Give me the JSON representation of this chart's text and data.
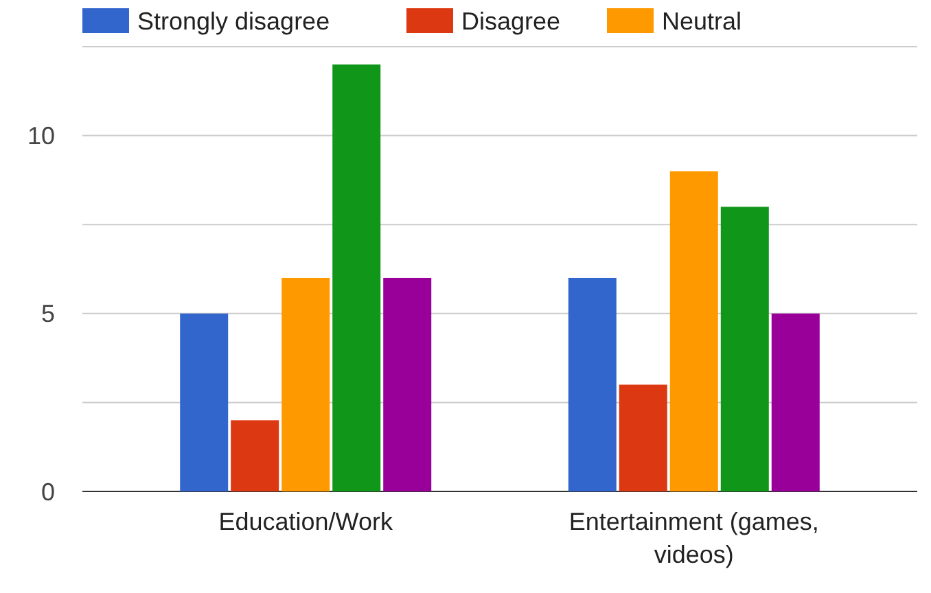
{
  "chart_data": {
    "type": "bar",
    "categories": [
      "Education/Work",
      "Entertainment (games, videos)"
    ],
    "series": [
      {
        "name": "Strongly disagree",
        "color": "#3366cc",
        "values": [
          5,
          6
        ]
      },
      {
        "name": "Disagree",
        "color": "#dc3912",
        "values": [
          2,
          3
        ]
      },
      {
        "name": "Neutral",
        "color": "#ff9900",
        "values": [
          6,
          9
        ]
      },
      {
        "color": "#109618",
        "values": [
          12,
          8
        ]
      },
      {
        "color": "#990099",
        "values": [
          6,
          5
        ]
      }
    ],
    "ylim": [
      0,
      12.5
    ],
    "yticks": [
      0,
      {
        "value": 2.5,
        "label": null
      },
      5,
      {
        "value": 7.5,
        "label": null
      },
      10,
      {
        "value": 12.5,
        "label": null
      }
    ],
    "grid": true,
    "legend": "top"
  }
}
